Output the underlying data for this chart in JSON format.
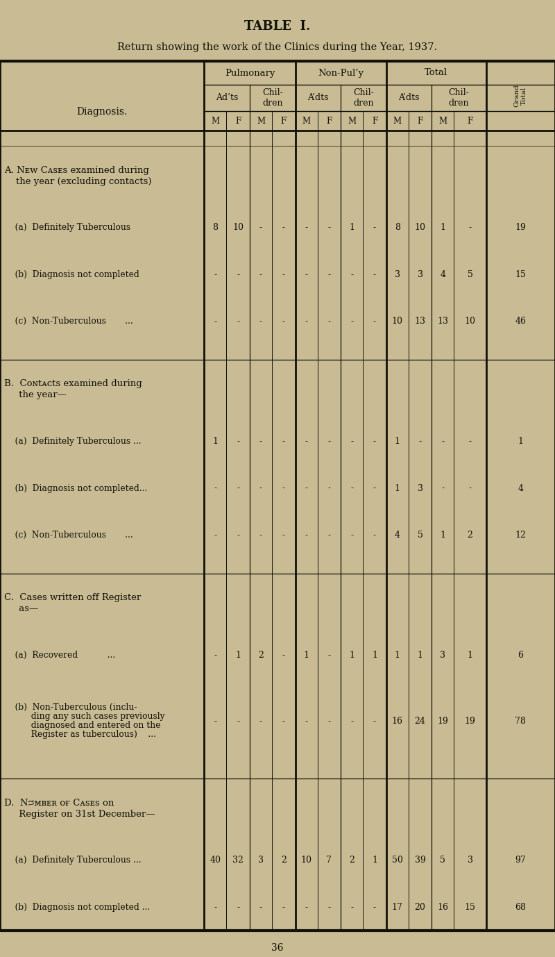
{
  "title1": "TABLE  I.",
  "title2": "Return showing the work of the Clinics during the Year, 1937.",
  "bg_color": "#c9bc94",
  "text_color": "#111108",
  "sections": [
    {
      "header_line1": "A. Nᴇw Cᴀsᴇs examined during",
      "header_line2": "    the year (excluding contacts)",
      "rows": [
        {
          "label": "    (a)  Definitely Tuberculous",
          "data": [
            "8",
            "10",
            "-",
            "-",
            "-",
            "-",
            "1",
            "-",
            "8",
            "10",
            "1",
            "-",
            "19"
          ]
        },
        {
          "label": "    (b)  Diagnosis not completed",
          "data": [
            "-",
            "-",
            "-",
            "-",
            "-",
            "-",
            "-",
            "-",
            "3",
            "3",
            "4",
            "5",
            "15"
          ]
        },
        {
          "label": "    (c)  Non-Tuberculous       ...",
          "data": [
            "-",
            "-",
            "-",
            "-",
            "-",
            "-",
            "-",
            "-",
            "10",
            "13",
            "13",
            "10",
            "46"
          ]
        }
      ]
    },
    {
      "header_line1": "B.  Cᴏɴtᴀᴄts examined during",
      "header_line2": "     the year—",
      "rows": [
        {
          "label": "    (a)  Definitely Tuberculous ...",
          "data": [
            "1",
            "-",
            "-",
            "-",
            "-",
            "-",
            "-",
            "-",
            "1",
            "-",
            "-",
            "-",
            "1"
          ]
        },
        {
          "label": "    (b)  Diagnosis not completed...",
          "data": [
            "-",
            "-",
            "-",
            "-",
            "-",
            "-",
            "-",
            "-",
            "1",
            "3",
            "-",
            "-",
            "4"
          ]
        },
        {
          "label": "    (c)  Non-Tuberculous       ...",
          "data": [
            "-",
            "-",
            "-",
            "-",
            "-",
            "-",
            "-",
            "-",
            "4",
            "5",
            "1",
            "2",
            "12"
          ]
        }
      ]
    },
    {
      "header_line1": "C.  Cases written off Register",
      "header_line2": "     as—",
      "rows": [
        {
          "label": "    (a)  Recovered           ...",
          "data": [
            "-",
            "1",
            "2",
            "-",
            "1",
            "-",
            "1",
            "1",
            "1",
            "1",
            "3",
            "1",
            "6"
          ]
        },
        {
          "label_lines": [
            "    (b)  Non-Tuberculous (inclu-",
            "          ding any such cases previously",
            "          diagnosed and entered on the",
            "          Register as tuberculous)    ..."
          ],
          "data": [
            "-",
            "-",
            "-",
            "-",
            "-",
            "-",
            "-",
            "-",
            "16",
            "24",
            "19",
            "19",
            "78"
          ]
        }
      ]
    },
    {
      "header_line1": "D.  Nᴝᴍʙᴇʀ ᴏғ Cᴀsᴇs on",
      "header_line2": "     Register on 31st December—",
      "rows": [
        {
          "label": "    (a)  Definitely Tuberculous ...",
          "data": [
            "40",
            "32",
            "3",
            "2",
            "10",
            "7",
            "2",
            "1",
            "50",
            "39",
            "5",
            "3",
            "97"
          ]
        },
        {
          "label": "    (b)  Diagnosis not completed ...",
          "data": [
            "-",
            "-",
            "-",
            "-",
            "-",
            "-",
            "-",
            "-",
            "17",
            "20",
            "16",
            "15",
            "68"
          ]
        }
      ]
    }
  ],
  "footer": "36",
  "col_boundaries": [
    0.0,
    0.368,
    0.408,
    0.45,
    0.49,
    0.532,
    0.572,
    0.614,
    0.654,
    0.696,
    0.736,
    0.778,
    0.818,
    0.876,
    1.0
  ]
}
